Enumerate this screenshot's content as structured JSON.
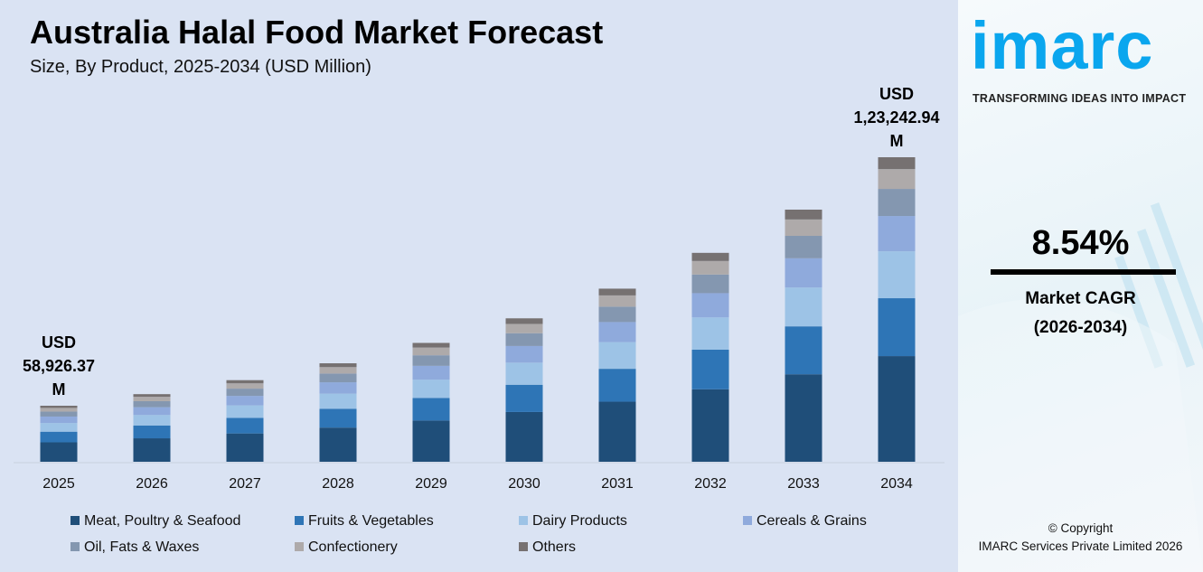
{
  "title": "Australia Halal Food Market Forecast",
  "subtitle": "Size, By Product, 2025-2034 (USD Million)",
  "annotations": {
    "start": [
      "USD",
      "58,926.37",
      "M"
    ],
    "end": [
      "USD",
      "1,23,242.94",
      "M"
    ]
  },
  "side": {
    "logo": "imarc",
    "tagline": "TRANSFORMING IDEAS INTO IMPACT",
    "cagr_value": "8.54%",
    "cagr_label": "Market CAGR",
    "cagr_period": "(2026-2034)",
    "copyright": "© Copyright",
    "company": "IMARC Services Private Limited 2026"
  },
  "chart_data": {
    "type": "bar",
    "stacked": true,
    "title": "Australia Halal Food Market Forecast",
    "subtitle": "Size, By Product, 2025-2034 (USD Million)",
    "categories": [
      "2025",
      "2026",
      "2027",
      "2028",
      "2029",
      "2030",
      "2031",
      "2032",
      "2033",
      "2034"
    ],
    "totals": [
      58926.37,
      63957,
      69419,
      75347,
      81782,
      88766,
      96347,
      104574,
      113505,
      123242.94
    ],
    "legend_position": "bottom",
    "grid": false,
    "series": [
      {
        "name": "Meat, Poultry & Seafood",
        "color": "#1f4e79",
        "values": [
          20447,
          22193,
          24088,
          26145,
          28378,
          30802,
          33432,
          36287,
          39386,
          42765
        ]
      },
      {
        "name": "Fruits & Vegetables",
        "color": "#2e75b6",
        "values": [
          11196,
          12152,
          13190,
          14316,
          15539,
          16866,
          18306,
          19869,
          21566,
          23416
        ]
      },
      {
        "name": "Dairy Products",
        "color": "#9dc3e6",
        "values": [
          9075,
          9849,
          10691,
          11603,
          12594,
          13670,
          14837,
          16104,
          17480,
          18979
        ]
      },
      {
        "name": "Cereals & Grains",
        "color": "#8faadc",
        "values": [
          6835,
          7419,
          8053,
          8740,
          9487,
          10297,
          11176,
          12131,
          13167,
          14296
        ]
      },
      {
        "name": "Oil, Fats & Waxes",
        "color": "#8497b0",
        "values": [
          5244,
          5692,
          6178,
          6706,
          7279,
          7900,
          8575,
          9307,
          10102,
          10969
        ]
      },
      {
        "name": "Confectionery",
        "color": "#aeaaaa",
        "values": [
          3830,
          4157,
          4512,
          4898,
          5316,
          5770,
          6263,
          6797,
          7378,
          8011
        ]
      },
      {
        "name": "Others",
        "color": "#767171",
        "values": [
          2298,
          2494,
          2707,
          2939,
          3189,
          3462,
          3758,
          4078,
          4427,
          4806
        ]
      }
    ]
  }
}
